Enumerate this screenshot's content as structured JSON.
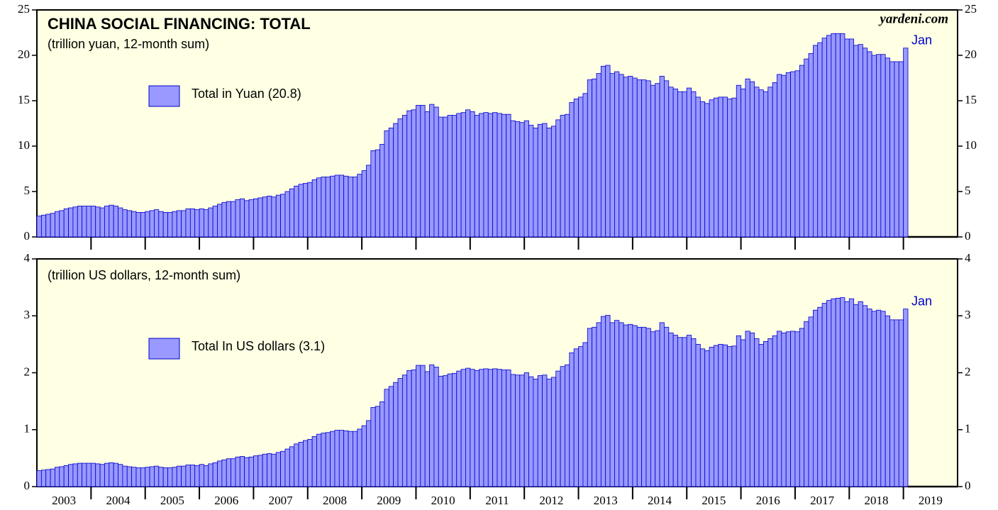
{
  "chart_data": [
    {
      "type": "bar",
      "title": "CHINA SOCIAL FINANCING: TOTAL",
      "subtitle": "(trillion yuan, 12-month sum)",
      "source": "yardeni.com",
      "annotation": "Jan",
      "series": [
        {
          "name": "Total in Yuan (20.8)",
          "color": "#9999ff",
          "values": [
            2.3,
            2.4,
            2.5,
            2.6,
            2.8,
            2.9,
            3.1,
            3.2,
            3.3,
            3.4,
            3.4,
            3.4,
            3.4,
            3.3,
            3.2,
            3.4,
            3.5,
            3.4,
            3.2,
            3.0,
            2.9,
            2.8,
            2.7,
            2.7,
            2.8,
            2.9,
            3.0,
            2.8,
            2.7,
            2.7,
            2.8,
            2.9,
            2.9,
            3.1,
            3.1,
            3.0,
            3.1,
            3.0,
            3.2,
            3.4,
            3.6,
            3.8,
            3.9,
            3.9,
            4.1,
            4.2,
            4.0,
            4.1,
            4.2,
            4.3,
            4.4,
            4.5,
            4.4,
            4.6,
            4.7,
            5.0,
            5.3,
            5.6,
            5.8,
            5.9,
            6.0,
            6.3,
            6.5,
            6.6,
            6.6,
            6.7,
            6.8,
            6.8,
            6.7,
            6.6,
            6.6,
            6.9,
            7.3,
            7.9,
            9.5,
            9.6,
            10.2,
            11.7,
            12.0,
            12.5,
            13.0,
            13.4,
            13.9,
            14.0,
            14.5,
            14.5,
            13.8,
            14.6,
            14.3,
            13.2,
            13.2,
            13.4,
            13.4,
            13.6,
            13.7,
            14.0,
            13.8,
            13.4,
            13.6,
            13.7,
            13.6,
            13.7,
            13.6,
            13.5,
            13.5,
            12.8,
            12.7,
            12.6,
            12.8,
            12.3,
            12.0,
            12.4,
            12.5,
            12.0,
            12.2,
            12.9,
            13.4,
            13.5,
            14.8,
            15.2,
            15.4,
            15.8,
            17.3,
            17.4,
            18.0,
            18.8,
            18.9,
            18.0,
            18.2,
            17.9,
            17.6,
            17.7,
            17.5,
            17.3,
            17.3,
            17.2,
            16.7,
            16.9,
            17.7,
            17.2,
            16.5,
            16.3,
            16.0,
            16.0,
            16.4,
            16.0,
            15.4,
            14.9,
            14.7,
            15.1,
            15.3,
            15.4,
            15.4,
            15.2,
            15.3,
            16.7,
            16.3,
            17.4,
            17.1,
            16.5,
            16.2,
            16.0,
            16.5,
            17.0,
            17.9,
            17.8,
            18.1,
            18.2,
            18.3,
            18.9,
            19.6,
            20.2,
            21.1,
            21.4,
            21.9,
            22.2,
            22.4,
            22.4,
            22.4,
            21.8,
            21.8,
            21.1,
            21.2,
            20.8,
            20.4,
            20.0,
            20.1,
            20.1,
            19.7,
            19.3,
            19.3,
            19.3,
            20.8
          ]
        }
      ],
      "ylim": [
        0,
        25
      ],
      "yticks": [
        0,
        5,
        10,
        15,
        20,
        25
      ]
    },
    {
      "type": "bar",
      "subtitle": "(trillion US dollars, 12-month sum)",
      "annotation": "Jan",
      "series": [
        {
          "name": "Total In US dollars (3.1)",
          "color": "#9999ff",
          "values": [
            0.28,
            0.29,
            0.3,
            0.31,
            0.34,
            0.35,
            0.37,
            0.39,
            0.4,
            0.41,
            0.41,
            0.41,
            0.41,
            0.4,
            0.39,
            0.41,
            0.42,
            0.41,
            0.39,
            0.36,
            0.35,
            0.34,
            0.33,
            0.33,
            0.34,
            0.35,
            0.36,
            0.34,
            0.33,
            0.33,
            0.34,
            0.36,
            0.36,
            0.38,
            0.38,
            0.37,
            0.39,
            0.37,
            0.4,
            0.42,
            0.45,
            0.47,
            0.49,
            0.49,
            0.52,
            0.53,
            0.51,
            0.52,
            0.54,
            0.55,
            0.57,
            0.58,
            0.57,
            0.6,
            0.62,
            0.66,
            0.7,
            0.75,
            0.78,
            0.81,
            0.83,
            0.88,
            0.92,
            0.94,
            0.95,
            0.97,
            0.99,
            0.99,
            0.98,
            0.97,
            0.97,
            1.01,
            1.07,
            1.16,
            1.39,
            1.41,
            1.49,
            1.71,
            1.76,
            1.83,
            1.9,
            1.96,
            2.04,
            2.05,
            2.13,
            2.13,
            2.02,
            2.14,
            2.1,
            1.94,
            1.95,
            1.98,
            1.99,
            2.03,
            2.06,
            2.08,
            2.06,
            2.04,
            2.06,
            2.07,
            2.06,
            2.07,
            2.06,
            2.05,
            2.05,
            1.97,
            1.96,
            1.96,
            2.0,
            1.93,
            1.89,
            1.95,
            1.96,
            1.89,
            1.92,
            2.03,
            2.11,
            2.14,
            2.35,
            2.42,
            2.46,
            2.53,
            2.78,
            2.8,
            2.88,
            2.99,
            3.01,
            2.88,
            2.92,
            2.88,
            2.84,
            2.85,
            2.83,
            2.8,
            2.8,
            2.78,
            2.72,
            2.74,
            2.88,
            2.8,
            2.7,
            2.66,
            2.62,
            2.62,
            2.66,
            2.6,
            2.5,
            2.42,
            2.39,
            2.45,
            2.48,
            2.5,
            2.49,
            2.46,
            2.47,
            2.65,
            2.58,
            2.73,
            2.7,
            2.6,
            2.5,
            2.55,
            2.6,
            2.65,
            2.73,
            2.7,
            2.72,
            2.73,
            2.72,
            2.78,
            2.9,
            2.98,
            3.1,
            3.15,
            3.22,
            3.27,
            3.3,
            3.31,
            3.32,
            3.25,
            3.3,
            3.2,
            3.25,
            3.18,
            3.12,
            3.08,
            3.1,
            3.08,
            3.0,
            2.93,
            2.93,
            2.93,
            3.12
          ]
        }
      ],
      "ylim": [
        0,
        4
      ],
      "yticks": [
        0,
        1,
        2,
        3,
        4
      ],
      "xtick_labels": [
        "2003",
        "2004",
        "2005",
        "2006",
        "2007",
        "2008",
        "2009",
        "2010",
        "2011",
        "2012",
        "2013",
        "2014",
        "2015",
        "2016",
        "2017",
        "2018",
        "2019"
      ]
    }
  ]
}
